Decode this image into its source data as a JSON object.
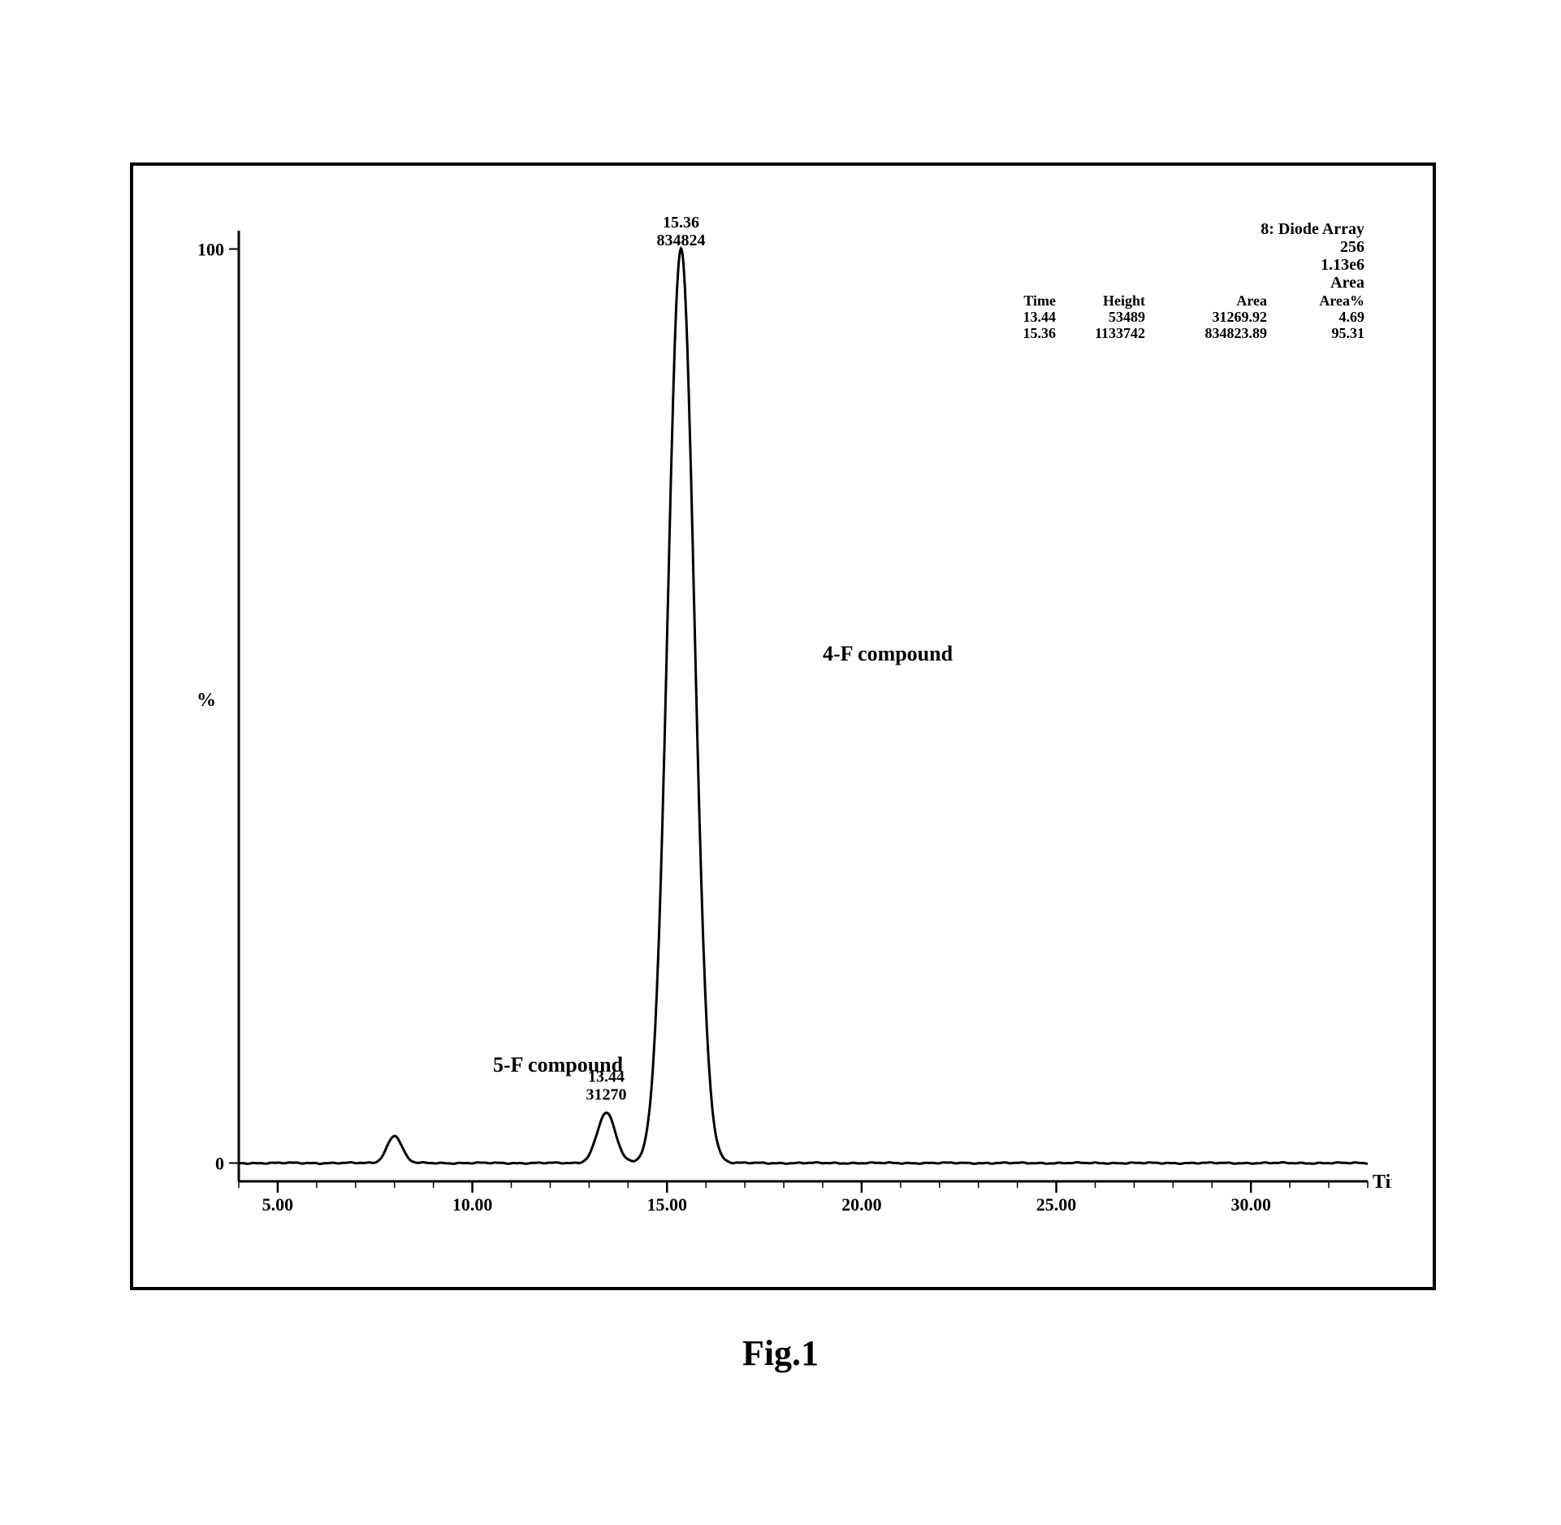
{
  "caption": "Fig.1",
  "header": {
    "line1": "8: Diode Array",
    "line2": "256",
    "line3": "1.13e6",
    "line4": "Area",
    "table_cols": [
      "Time",
      "Height",
      "Area",
      "Area%"
    ],
    "rows": [
      [
        "13.44",
        "53489",
        "31269.92",
        "4.69"
      ],
      [
        "15.36",
        "1133742",
        "834823.89",
        "95.31"
      ]
    ]
  },
  "chart": {
    "type": "line",
    "background_color": "#ffffff",
    "border_color": "#000000",
    "axis_color": "#000000",
    "line_color": "#000000",
    "line_width": 3,
    "x": {
      "label": "Time",
      "min": 4.0,
      "max": 33.0,
      "tick_start": 5.0,
      "tick_step": 5.0,
      "tick_labels": [
        "5.00",
        "10.00",
        "15.00",
        "20.00",
        "25.00",
        "30.00"
      ],
      "minor_step": 1.0,
      "tick_fontsize": 22
    },
    "y": {
      "label": "%",
      "min": -2,
      "max": 102,
      "tick_values": [
        0,
        100
      ],
      "tick_labels": [
        "0",
        "100"
      ],
      "tick_fontsize": 22
    },
    "peaks": [
      {
        "rt": 8.0,
        "height_pct": 3,
        "width": 0.45,
        "label": null,
        "top_lines": null
      },
      {
        "rt": 13.44,
        "height_pct": 5.5,
        "width": 0.55,
        "label": "5-F compound",
        "top_lines": [
          "13.44",
          "31270"
        ]
      },
      {
        "rt": 15.36,
        "height_pct": 100,
        "width": 0.8,
        "label": "4-F compound",
        "top_lines": [
          "15.36",
          "834824"
        ]
      }
    ],
    "peak_label_fontsize": 26,
    "peak_annot_fontsize": 20
  }
}
